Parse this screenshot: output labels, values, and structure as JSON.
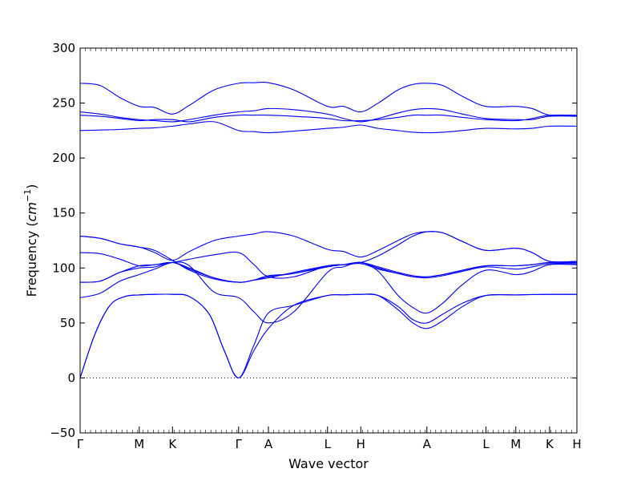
{
  "chart_data": {
    "type": "line",
    "xlabel": "Wave vector",
    "ylabel": "Frequency ",
    "ylabel_unit_base": "cm",
    "ylabel_unit_exp": "−1",
    "ylim": [
      -50,
      300
    ],
    "yticks": [
      -50,
      0,
      50,
      100,
      150,
      200,
      250,
      300
    ],
    "ytick_labels": [
      "−50",
      "0",
      "50",
      "100",
      "150",
      "200",
      "250",
      "300"
    ],
    "xlim": [
      0,
      100
    ],
    "high_symmetry_points": [
      {
        "label": "Γ",
        "x": 0
      },
      {
        "label": "M",
        "x": 11.9
      },
      {
        "label": "K",
        "x": 18.6
      },
      {
        "label": "Γ",
        "x": 31.9
      },
      {
        "label": "A",
        "x": 37.9
      },
      {
        "label": "L",
        "x": 49.8
      },
      {
        "label": "H",
        "x": 56.5
      },
      {
        "label": "A",
        "x": 69.8
      },
      {
        "label": "L",
        "x": 81.7
      },
      {
        "label": "M",
        "x": 87.7
      },
      {
        "label": "K",
        "x": 94.5
      },
      {
        "label": "H",
        "x": 100
      }
    ],
    "zero_line": true,
    "color": "#0000ff",
    "series": [
      {
        "x": [
          0,
          3,
          6,
          9,
          11.9,
          15,
          18.6,
          22,
          26,
          29,
          31.9,
          35,
          37.9,
          43,
          49.8,
          53,
          56.5,
          60,
          64,
          67,
          69.8,
          73,
          77,
          81.7,
          87.7,
          91,
          94.5,
          100
        ],
        "y": [
          0,
          40,
          66,
          74,
          75.5,
          76,
          76,
          74,
          58,
          25,
          0,
          30,
          59,
          66,
          75,
          75.5,
          76,
          75,
          65,
          53,
          50,
          58,
          68,
          75,
          75.5,
          75.8,
          76,
          76
        ]
      },
      {
        "x": [
          0,
          3,
          6,
          9,
          11.9,
          15,
          18.6,
          22,
          26,
          29,
          31.9,
          35,
          37.9,
          43,
          49.8,
          53,
          56.5,
          60,
          64,
          67,
          69.8,
          73,
          77,
          81.7,
          87.7,
          91,
          94.5,
          100
        ],
        "y": [
          0,
          40,
          66,
          74,
          75.5,
          76,
          76,
          74,
          58,
          25,
          0,
          25,
          45,
          66,
          75,
          75.5,
          76,
          75,
          62,
          50,
          45,
          52,
          65,
          75,
          75.5,
          75.8,
          76,
          76
        ]
      },
      {
        "x": [
          0,
          4,
          8,
          11.9,
          15,
          18.6,
          22,
          27,
          31.9,
          35,
          37.9,
          43,
          49.8,
          53,
          56.5,
          60,
          64,
          67,
          69.8,
          73,
          77,
          81.7,
          87.7,
          91,
          94.5,
          100
        ],
        "y": [
          73,
          77,
          88,
          94,
          99,
          105,
          102,
          78,
          73,
          60,
          50,
          60,
          96,
          101,
          105,
          97,
          75,
          64,
          59,
          68,
          85,
          98,
          94,
          97,
          103,
          103
        ]
      },
      {
        "x": [
          0,
          4,
          8,
          11.9,
          15,
          18.6,
          22,
          27,
          31.9,
          35,
          37.9,
          43,
          49.8,
          53,
          56.5,
          60,
          64,
          67,
          69.8,
          73,
          77,
          81.7,
          87.7,
          91,
          94.5,
          100
        ],
        "y": [
          87,
          88,
          96,
          100,
          101,
          105,
          99,
          91,
          87,
          89,
          92,
          95,
          101,
          103,
          105,
          100,
          95,
          92,
          91,
          93,
          97,
          101,
          99,
          101,
          104,
          104
        ]
      },
      {
        "x": [
          0,
          4,
          8,
          11.9,
          15,
          18.6,
          22,
          27,
          31.9,
          35,
          37.9,
          43,
          49.8,
          53,
          56.5,
          60,
          64,
          67,
          69.8,
          73,
          77,
          81.7,
          87.7,
          91,
          94.5,
          100
        ],
        "y": [
          87,
          88,
          96,
          102,
          103,
          105,
          100,
          91,
          87,
          89,
          91,
          96,
          102,
          103,
          105,
          101,
          96,
          93,
          92,
          94,
          98,
          102,
          102,
          103,
          105,
          105
        ]
      },
      {
        "x": [
          0,
          4,
          8,
          11.9,
          15,
          18.6,
          22,
          27,
          31.9,
          35,
          37.9,
          43,
          49.8,
          53,
          56.5,
          60,
          64,
          67,
          69.8,
          73,
          77,
          81.7,
          87.7,
          91,
          94.5,
          100
        ],
        "y": [
          114,
          113,
          108,
          102,
          103,
          105,
          108,
          112,
          114,
          103,
          92,
          92,
          102,
          103,
          104,
          99,
          95,
          92,
          92,
          94,
          98,
          102,
          102,
          103,
          105,
          105
        ]
      },
      {
        "x": [
          0,
          4,
          8,
          11.9,
          15,
          18.6,
          22,
          27,
          31.9,
          35,
          37.9,
          43,
          49.8,
          53,
          56.5,
          60,
          64,
          67,
          69.8,
          73,
          77,
          81.7,
          87.7,
          91,
          94.5,
          100
        ],
        "y": [
          129,
          127,
          122,
          119,
          116,
          107,
          98,
          90,
          87,
          89,
          93,
          95,
          102,
          103,
          105,
          111,
          121,
          129,
          133,
          132,
          124,
          116,
          118,
          114,
          106,
          106
        ]
      },
      {
        "x": [
          0,
          4,
          8,
          11.9,
          15,
          18.6,
          22,
          27,
          31.9,
          35,
          37.9,
          43,
          49.8,
          53,
          56.5,
          60,
          64,
          67,
          69.8,
          73,
          77,
          81.7,
          87.7,
          91,
          94.5,
          100
        ],
        "y": [
          129,
          127,
          122,
          119,
          114,
          107,
          115,
          125,
          129,
          131,
          133,
          129,
          117,
          115,
          110,
          116,
          125,
          131,
          133,
          132,
          124,
          116,
          118,
          114,
          106,
          106
        ]
      },
      {
        "x": [
          0,
          4,
          8,
          11.9,
          15,
          18.6,
          22,
          27,
          31.9,
          35,
          37.9,
          43,
          49.8,
          53,
          56.5,
          60,
          64,
          67,
          69.8,
          73,
          77,
          81.7,
          87.7,
          91,
          94.5,
          100
        ],
        "y": [
          225,
          225.5,
          226,
          227,
          227.5,
          229,
          231,
          233,
          225,
          224,
          223,
          224.5,
          227,
          228,
          230,
          227,
          225,
          223.5,
          223,
          223.5,
          225,
          227,
          226.5,
          227,
          229,
          229
        ]
      },
      {
        "x": [
          0,
          4,
          8,
          11.9,
          15,
          18.6,
          22,
          27,
          31.9,
          35,
          37.9,
          43,
          49.8,
          53,
          56.5,
          60,
          64,
          67,
          69.8,
          73,
          77,
          81.7,
          87.7,
          91,
          94.5,
          100
        ],
        "y": [
          239,
          238,
          236,
          234,
          235,
          235,
          233,
          237,
          239,
          239,
          239,
          238,
          236,
          234,
          234,
          235,
          237,
          239,
          239,
          239,
          237,
          235,
          234,
          236,
          239,
          239
        ]
      },
      {
        "x": [
          0,
          4,
          8,
          11.9,
          15,
          18.6,
          22,
          27,
          31.9,
          35,
          37.9,
          43,
          49.8,
          53,
          56.5,
          60,
          64,
          67,
          69.8,
          73,
          77,
          81.7,
          87.7,
          91,
          94.5,
          100
        ],
        "y": [
          242,
          240,
          237,
          235,
          234,
          233,
          235,
          239,
          242,
          243,
          245,
          244,
          240,
          236,
          233,
          236,
          241,
          244,
          245,
          244,
          240,
          236,
          235,
          235,
          238,
          238
        ]
      },
      {
        "x": [
          0,
          4,
          8,
          11.9,
          15,
          18.6,
          22,
          27,
          31.9,
          35,
          37.9,
          43,
          49.8,
          53,
          56.5,
          60,
          64,
          67,
          69.8,
          73,
          77,
          81.7,
          87.7,
          91,
          94.5,
          100
        ],
        "y": [
          268,
          266,
          255,
          247,
          246,
          240,
          248,
          262,
          268,
          268.5,
          268.5,
          262,
          247,
          247,
          242,
          250,
          262,
          267,
          268,
          266,
          256,
          247,
          247,
          245,
          239,
          239
        ]
      }
    ]
  }
}
